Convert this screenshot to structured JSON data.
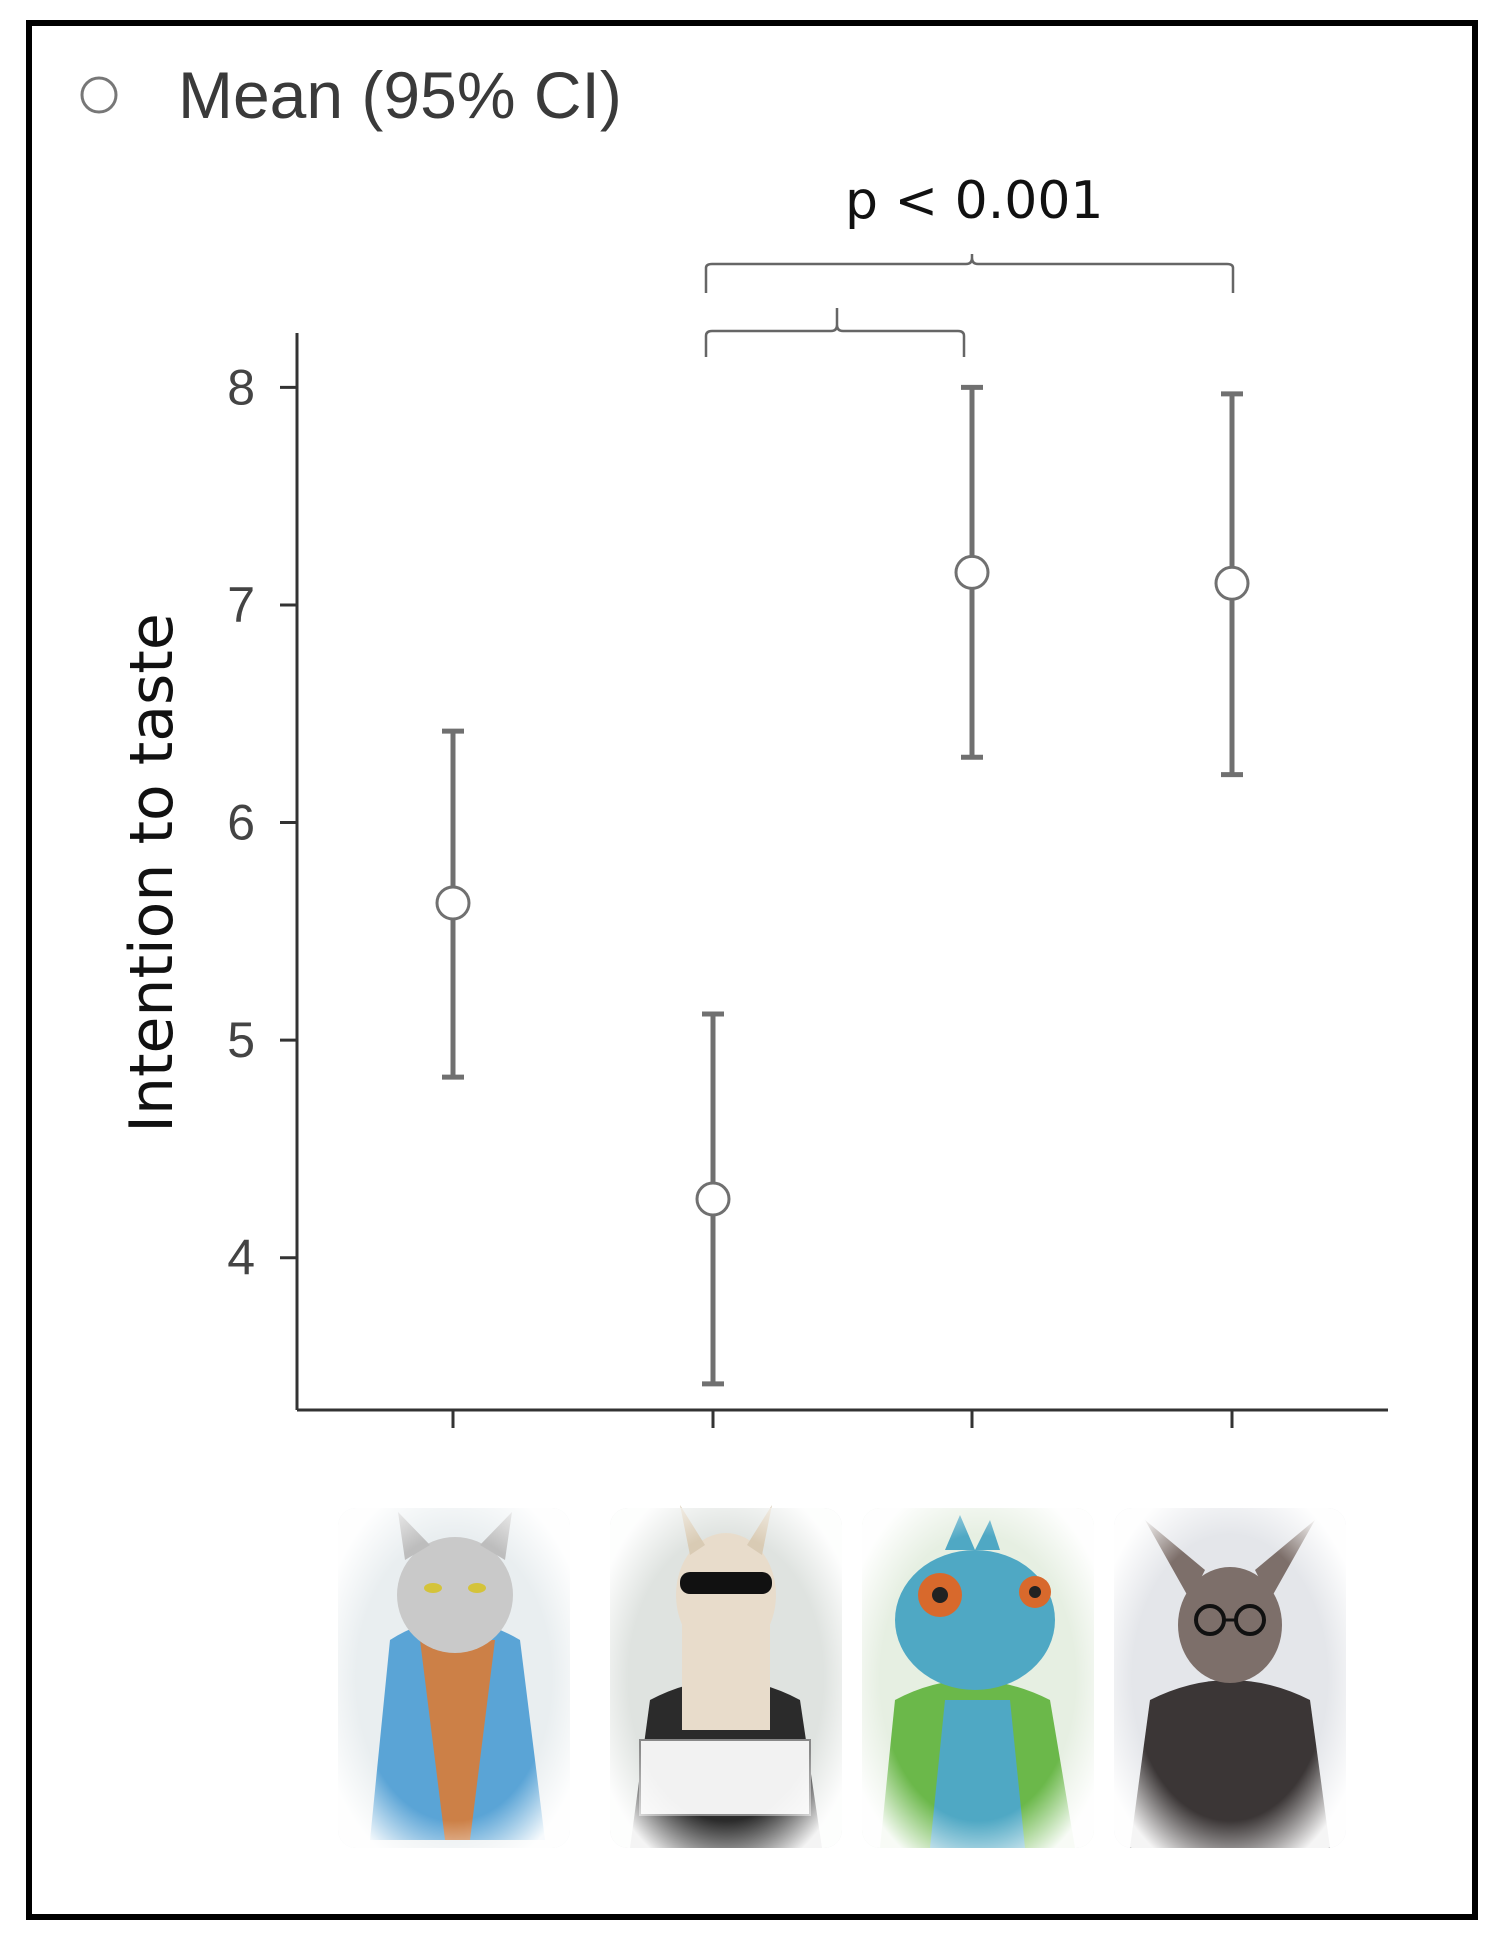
{
  "chart_data": {
    "type": "scatter",
    "title": "",
    "legend": {
      "marker": "open-circle",
      "label": "Mean (95% CI)",
      "placement": "top-left"
    },
    "ylabel": "Intention to taste",
    "xlabel": "",
    "ylim": [
      3.3,
      8.25
    ],
    "yticks": [
      4,
      5,
      6,
      7,
      8
    ],
    "categories": [
      "cat character",
      "llama character",
      "chameleon character",
      "bat-eared character"
    ],
    "series": [
      {
        "points": [
          {
            "x": "cat character",
            "mean": 5.63,
            "ci_low": 4.83,
            "ci_high": 6.42
          },
          {
            "x": "llama character",
            "mean": 4.27,
            "ci_low": 3.42,
            "ci_high": 5.12
          },
          {
            "x": "chameleon character",
            "mean": 7.15,
            "ci_low": 6.3,
            "ci_high": 8.0
          },
          {
            "x": "bat-eared character",
            "mean": 7.1,
            "ci_low": 6.22,
            "ci_high": 7.97
          }
        ]
      }
    ],
    "significance": {
      "label": "p < 0.001",
      "comparisons": [
        [
          1,
          2
        ],
        [
          1,
          3
        ]
      ]
    },
    "grid": false,
    "colors": {
      "error_bar": "#707070",
      "marker_fill": "#ffffff",
      "axis": "#333333"
    }
  },
  "illustrations": [
    {
      "name": "cat-illustration",
      "palette": [
        "#5aa4d6",
        "#e07a2e",
        "#c9c9c9"
      ]
    },
    {
      "name": "llama-illustration",
      "palette": [
        "#e8dccb",
        "#2b2b2b",
        "#f2f2f2"
      ]
    },
    {
      "name": "chameleon-illustration",
      "palette": [
        "#4fa8c4",
        "#6bb84a",
        "#d8692c"
      ]
    },
    {
      "name": "bat-illustration",
      "palette": [
        "#3b3636",
        "#7d6f6a",
        "#c9c3c0"
      ]
    }
  ]
}
